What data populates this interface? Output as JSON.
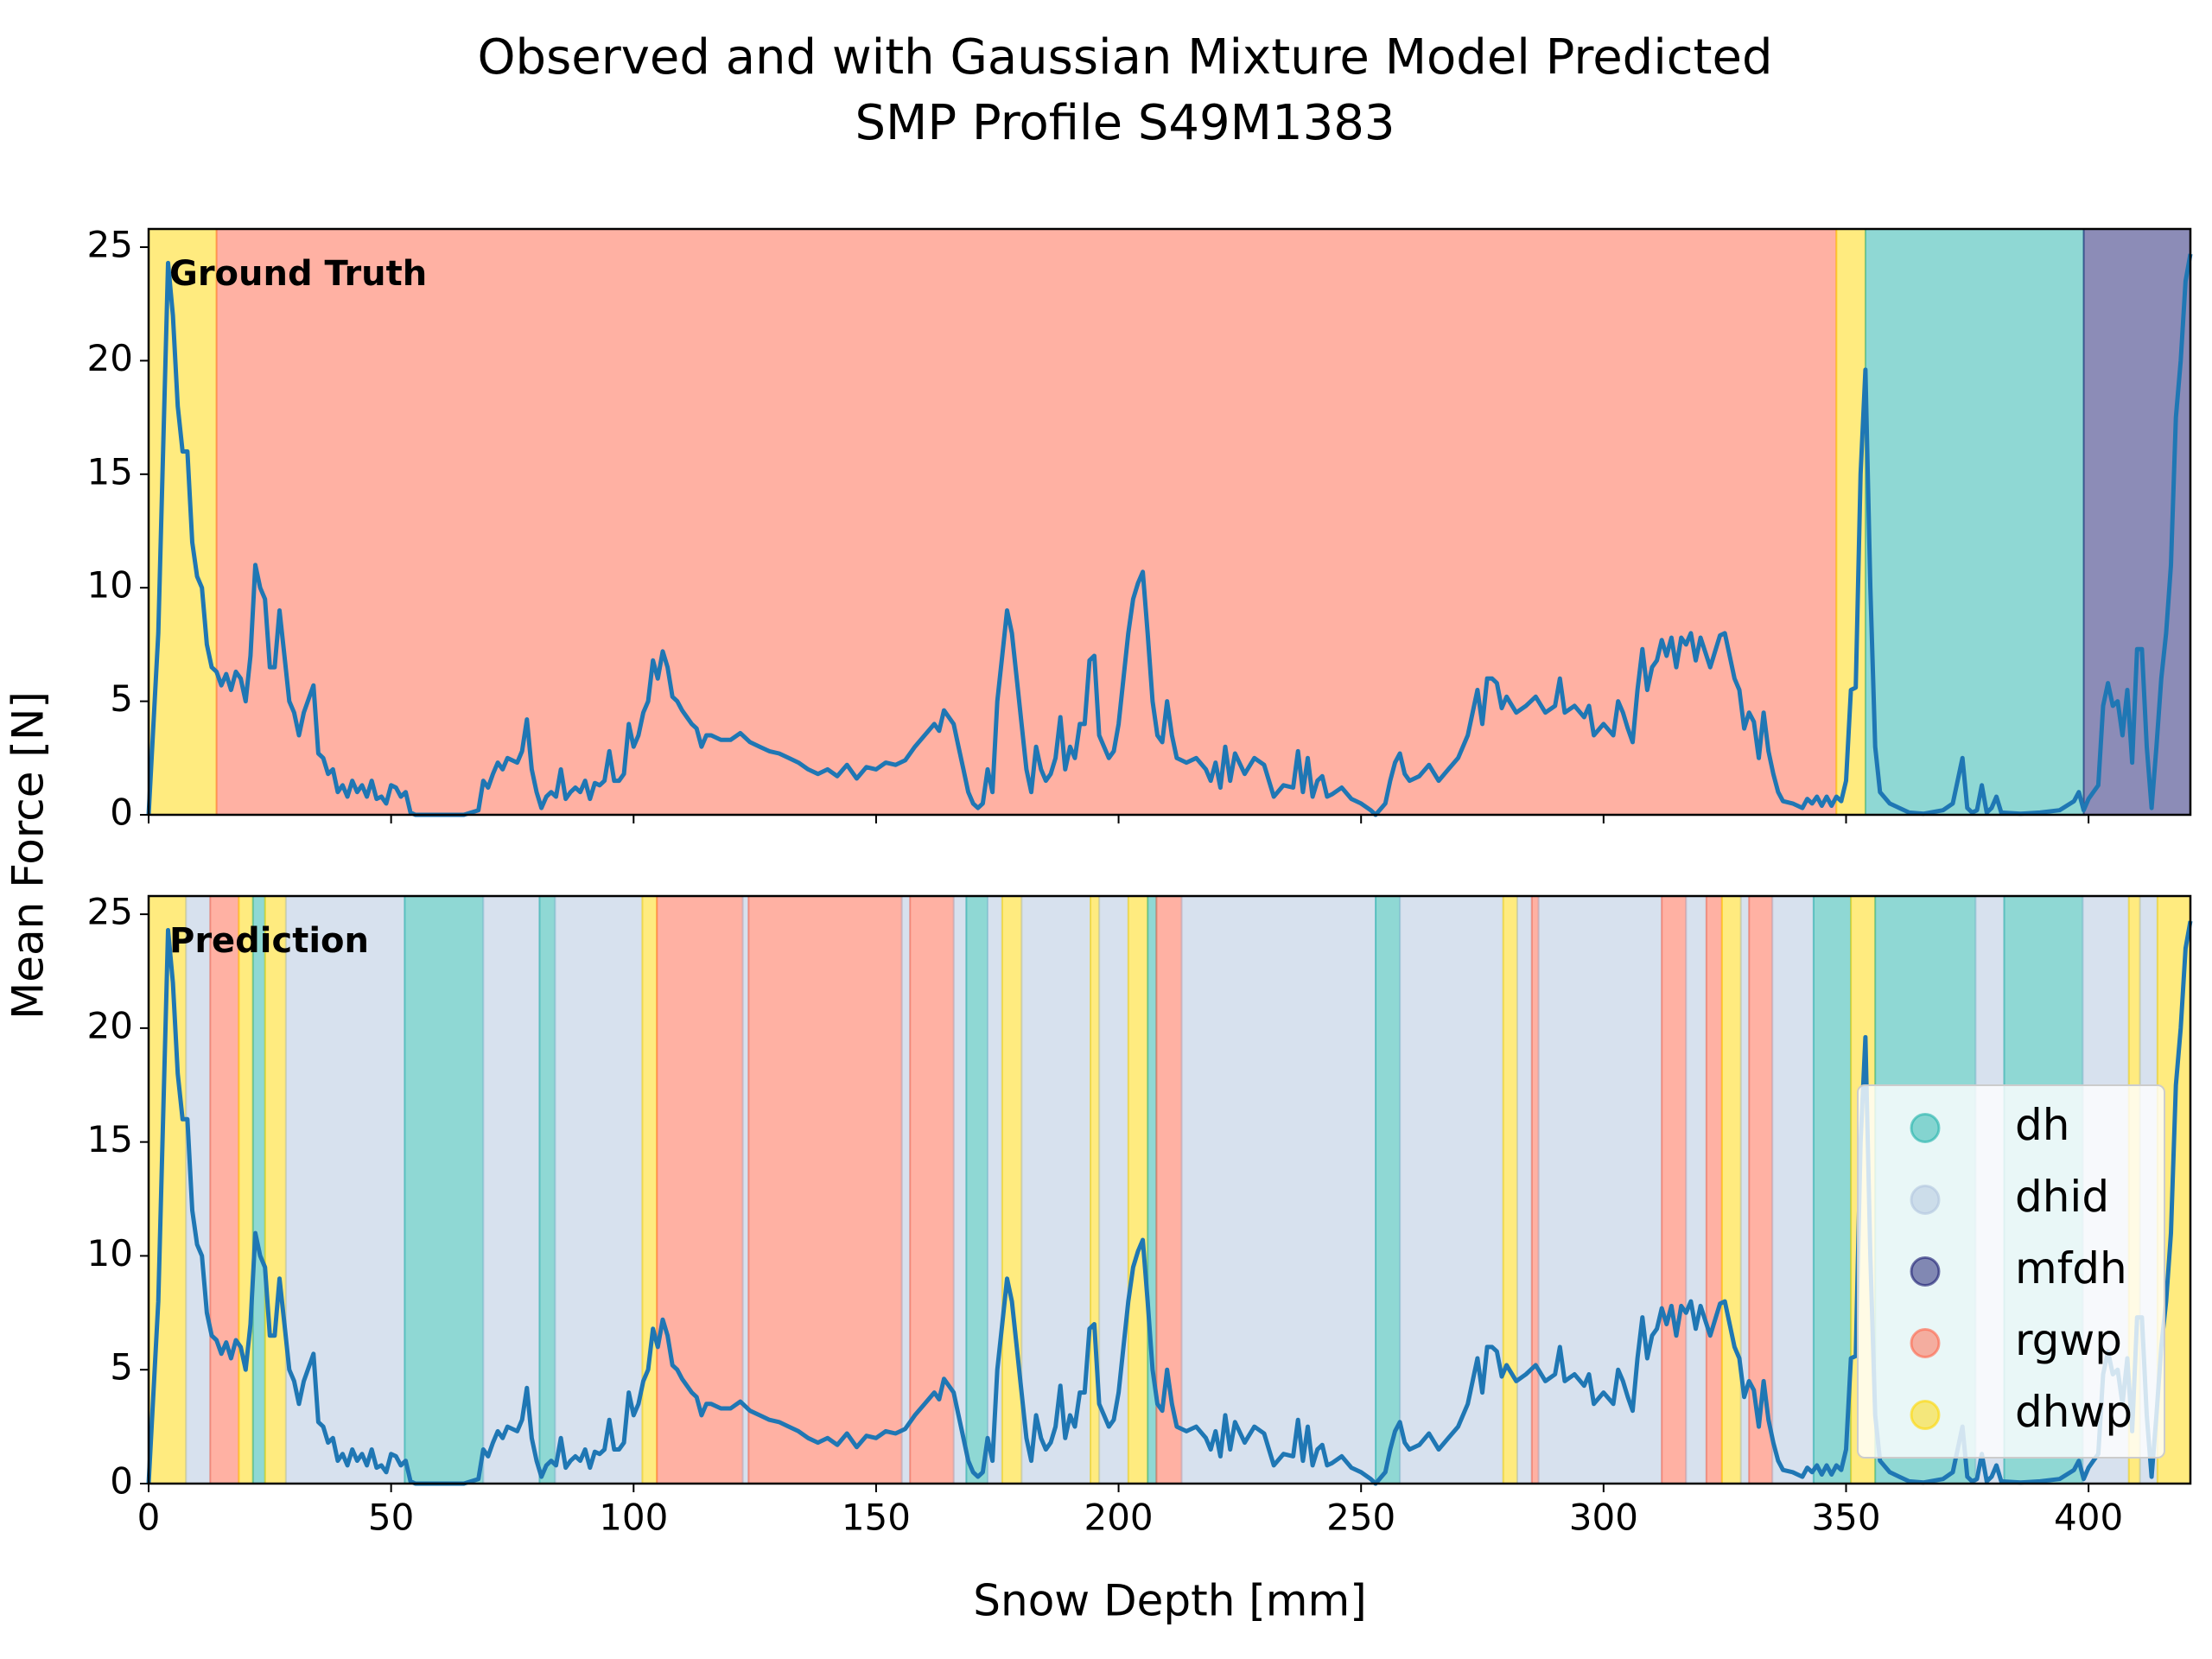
{
  "chart_data": {
    "type": "line",
    "title": [
      "Observed and with Gaussian Mixture Model Predicted",
      "SMP Profile S49M1383"
    ],
    "xlabel": "Snow Depth [mm]",
    "ylabel": "Mean Force [N]",
    "xlim": [
      0,
      421
    ],
    "xticks": [
      0,
      50,
      100,
      150,
      200,
      250,
      300,
      350,
      400
    ],
    "ylim": [
      0,
      25.8
    ],
    "yticks": [
      0,
      5,
      10,
      15,
      20,
      25
    ],
    "legend": "lower right",
    "classes": [
      {
        "name": "dh",
        "color": "#20b2aa"
      },
      {
        "name": "dhid",
        "color": "#b0c4de"
      },
      {
        "name": "mfdh",
        "color": "#191970"
      },
      {
        "name": "rgwp",
        "color": "#ff6347"
      },
      {
        "name": "dhwp",
        "color": "#ffd700"
      }
    ],
    "line": {
      "color": "#1f77b4",
      "x": [
        0,
        2,
        4,
        5,
        6,
        7,
        8,
        9,
        10,
        11,
        12,
        13,
        14,
        15,
        16,
        17,
        18,
        19,
        20,
        21,
        22,
        23,
        24,
        25,
        26,
        27,
        28,
        29,
        30,
        31,
        32,
        34,
        35,
        36,
        37,
        38,
        39,
        40,
        41,
        42,
        43,
        44,
        45,
        46,
        47,
        48,
        49,
        50,
        51,
        52,
        53,
        54,
        55,
        60,
        65,
        68,
        69,
        70,
        71,
        72,
        73,
        74,
        76,
        77,
        78,
        79,
        80,
        81,
        82,
        83,
        84,
        85,
        86,
        87,
        88,
        89,
        90,
        91,
        92,
        93,
        94,
        95,
        96,
        97,
        98,
        99,
        100,
        101,
        102,
        103,
        104,
        105,
        106,
        107,
        108,
        109,
        110,
        111,
        112,
        113,
        114,
        115,
        116,
        118,
        120,
        122,
        124,
        126,
        128,
        130,
        132,
        134,
        136,
        138,
        140,
        142,
        144,
        146,
        148,
        150,
        152,
        154,
        156,
        158,
        160,
        162,
        163,
        164,
        166,
        167,
        168,
        169,
        170,
        171,
        172,
        173,
        174,
        175,
        176,
        177,
        178,
        179,
        180,
        181,
        182,
        183,
        184,
        185,
        186,
        187,
        188,
        189,
        190,
        191,
        192,
        193,
        194,
        195,
        196,
        197,
        198,
        199,
        200,
        201,
        202,
        203,
        204,
        205,
        206,
        207,
        208,
        209,
        210,
        211,
        212,
        214,
        216,
        218,
        219,
        220,
        221,
        222,
        223,
        224,
        226,
        228,
        230,
        231,
        232,
        234,
        236,
        237,
        238,
        239,
        240,
        241,
        242,
        243,
        244,
        246,
        248,
        250,
        252,
        253,
        255,
        256,
        257,
        258,
        259,
        260,
        262,
        264,
        266,
        268,
        270,
        272,
        273,
        274,
        275,
        276,
        277,
        278,
        279,
        280,
        282,
        284,
        286,
        288,
        290,
        291,
        292,
        294,
        296,
        297,
        298,
        300,
        302,
        303,
        304,
        305,
        306,
        307,
        308,
        309,
        310,
        311,
        312,
        313,
        314,
        315,
        316,
        317,
        318,
        319,
        320,
        322,
        324,
        325,
        326,
        327,
        328,
        329,
        330,
        331,
        332,
        333,
        334,
        335,
        336,
        337,
        339,
        341,
        342,
        343,
        344,
        345,
        346,
        347,
        348,
        349,
        350,
        351,
        352,
        353,
        354,
        355,
        356,
        357,
        359,
        361,
        363,
        366,
        370,
        372,
        373,
        374,
        375,
        376,
        377,
        378,
        379,
        380,
        381,
        382,
        386,
        390,
        394,
        397,
        398,
        399,
        400,
        401,
        402,
        403,
        404,
        405,
        406,
        407,
        408,
        409,
        410,
        411,
        412,
        413,
        414,
        415,
        416,
        417,
        418,
        419,
        420,
        421
      ],
      "values": [
        0,
        8,
        24.3,
        22,
        18,
        16,
        16,
        12,
        10.5,
        10,
        7.5,
        6.5,
        6.3,
        5.7,
        6.2,
        5.5,
        6.3,
        6,
        5,
        7,
        11,
        10,
        9.5,
        6.5,
        6.5,
        9,
        7,
        5,
        4.5,
        3.5,
        4.5,
        5.7,
        2.7,
        2.5,
        1.8,
        2,
        1,
        1.3,
        0.8,
        1.5,
        1,
        1.3,
        0.8,
        1.5,
        0.7,
        0.8,
        0.5,
        1.3,
        1.2,
        0.8,
        1,
        0.1,
        0,
        0,
        0,
        0.2,
        1.5,
        1.2,
        1.8,
        2.3,
        2,
        2.5,
        2.3,
        2.8,
        4.2,
        2,
        1,
        0.3,
        0.8,
        1,
        0.8,
        2,
        0.7,
        1,
        1.2,
        1,
        1.5,
        0.7,
        1.4,
        1.3,
        1.5,
        2.8,
        1.5,
        1.5,
        1.8,
        4,
        3,
        3.5,
        4.5,
        5,
        6.8,
        6,
        7.2,
        6.5,
        5.2,
        5,
        4.6,
        4.3,
        4,
        3.8,
        3,
        3.5,
        3.5,
        3.3,
        3.3,
        3.6,
        3.2,
        3,
        2.8,
        2.7,
        2.5,
        2.3,
        2,
        1.8,
        2,
        1.7,
        2.2,
        1.6,
        2.1,
        2,
        2.3,
        2.2,
        2.4,
        3,
        3.5,
        4,
        3.7,
        4.6,
        4,
        3,
        2,
        1,
        0.5,
        0.3,
        0.5,
        2,
        1,
        5,
        7,
        9,
        8,
        6,
        4,
        2,
        1,
        3,
        2,
        1.5,
        1.8,
        2.5,
        4.3,
        2,
        3,
        2.5,
        4,
        4,
        6.8,
        7,
        3.5,
        3,
        2.5,
        2.8,
        4,
        6,
        8,
        9.5,
        10.2,
        10.7,
        8,
        5,
        3.5,
        3.2,
        5,
        3.5,
        2.5,
        2.3,
        2.5,
        2,
        1.5,
        2.3,
        1.2,
        3,
        1.5,
        2.7,
        1.8,
        2.5,
        2.2,
        1.5,
        0.8,
        1.3,
        1.2,
        2.8,
        1,
        2.5,
        0.8,
        1.5,
        1.7,
        0.8,
        0.9,
        1.2,
        0.7,
        0.5,
        0.2,
        0,
        0.5,
        1.5,
        2.3,
        2.7,
        1.8,
        1.5,
        1.7,
        2.2,
        1.5,
        2,
        2.5,
        3.5,
        4.5,
        5.5,
        4,
        6,
        6,
        5.8,
        4.7,
        5.2,
        4.5,
        4.8,
        5.2,
        4.5,
        4.8,
        6,
        4.5,
        4.8,
        4.3,
        4.8,
        3.5,
        4,
        3.5,
        5,
        4.5,
        3.8,
        3.2,
        5.5,
        7.3,
        5.5,
        6.5,
        6.8,
        7.7,
        7,
        7.8,
        6.5,
        7.8,
        7.5,
        8,
        6.8,
        7.8,
        6.5,
        7.9,
        8,
        7,
        6,
        5.5,
        3.8,
        4.5,
        4.1,
        2.5,
        4.5,
        2.8,
        1.8,
        1,
        0.6,
        0.5,
        0.3,
        0.7,
        0.5,
        0.8,
        0.4,
        0.8,
        0.4,
        0.8,
        0.6,
        1.5,
        5.5,
        5.6,
        15,
        19.6,
        10,
        3,
        1,
        0.5,
        0.3,
        0.1,
        0.05,
        0.2,
        0.5,
        1.5,
        2.5,
        0.3,
        0.1,
        0.2,
        1.3,
        0.1,
        0.3,
        0.8,
        0.1,
        0.05,
        0.1,
        0.2,
        0.6,
        1,
        0.2,
        0.7,
        1,
        1.3,
        4.8,
        5.8,
        4.8,
        5,
        3.5,
        5.5,
        2.3,
        7.3,
        7.3,
        3,
        0.3,
        3,
        6,
        8,
        11,
        17.5,
        20,
        23.5,
        24.7
      ]
    },
    "panels": [
      {
        "label": "Ground Truth",
        "spans": [
          {
            "start": 0,
            "end": 14,
            "class": "dhwp"
          },
          {
            "start": 14,
            "end": 348,
            "class": "rgwp"
          },
          {
            "start": 348,
            "end": 354,
            "class": "dhwp"
          },
          {
            "start": 354,
            "end": 399,
            "class": "dh"
          },
          {
            "start": 399,
            "end": 421,
            "class": "mfdh"
          }
        ]
      },
      {
        "label": "Prediction",
        "spans": [
          {
            "start": 0,
            "end": 7.7,
            "class": "dhwp"
          },
          {
            "start": 7.7,
            "end": 12.7,
            "class": "dhid"
          },
          {
            "start": 12.7,
            "end": 18.6,
            "class": "rgwp"
          },
          {
            "start": 18.6,
            "end": 21.5,
            "class": "dhwp"
          },
          {
            "start": 21.5,
            "end": 24,
            "class": "dh"
          },
          {
            "start": 24,
            "end": 28.3,
            "class": "dhwp"
          },
          {
            "start": 28.3,
            "end": 52.8,
            "class": "dhid"
          },
          {
            "start": 52.8,
            "end": 69,
            "class": "dh"
          },
          {
            "start": 69,
            "end": 80.6,
            "class": "dhid"
          },
          {
            "start": 80.6,
            "end": 83.8,
            "class": "dh"
          },
          {
            "start": 83.8,
            "end": 101.8,
            "class": "dhid"
          },
          {
            "start": 101.8,
            "end": 104.8,
            "class": "dhwp"
          },
          {
            "start": 104.8,
            "end": 122.5,
            "class": "rgwp"
          },
          {
            "start": 122.5,
            "end": 123.7,
            "class": "dhid"
          },
          {
            "start": 123.7,
            "end": 155.3,
            "class": "rgwp"
          },
          {
            "start": 155.3,
            "end": 157,
            "class": "dhid"
          },
          {
            "start": 157,
            "end": 166,
            "class": "rgwp"
          },
          {
            "start": 166,
            "end": 168.6,
            "class": "dhid"
          },
          {
            "start": 168.6,
            "end": 173,
            "class": "dh"
          },
          {
            "start": 173,
            "end": 176,
            "class": "dhid"
          },
          {
            "start": 176,
            "end": 180,
            "class": "dhwp"
          },
          {
            "start": 180,
            "end": 194.2,
            "class": "dhid"
          },
          {
            "start": 194.2,
            "end": 196,
            "class": "dhwp"
          },
          {
            "start": 196,
            "end": 202,
            "class": "dhid"
          },
          {
            "start": 202,
            "end": 206,
            "class": "dhwp"
          },
          {
            "start": 206,
            "end": 207.8,
            "class": "dh"
          },
          {
            "start": 207.8,
            "end": 213,
            "class": "rgwp"
          },
          {
            "start": 213,
            "end": 253,
            "class": "dhid"
          },
          {
            "start": 253,
            "end": 258,
            "class": "dh"
          },
          {
            "start": 258,
            "end": 279.3,
            "class": "dhid"
          },
          {
            "start": 279.3,
            "end": 282.2,
            "class": "dhwp"
          },
          {
            "start": 282.2,
            "end": 285.2,
            "class": "dhid"
          },
          {
            "start": 285.2,
            "end": 286.6,
            "class": "rgwp"
          },
          {
            "start": 286.6,
            "end": 312,
            "class": "dhid"
          },
          {
            "start": 312,
            "end": 317,
            "class": "rgwp"
          },
          {
            "start": 317,
            "end": 321.2,
            "class": "dhid"
          },
          {
            "start": 321.2,
            "end": 324.4,
            "class": "rgwp"
          },
          {
            "start": 324.4,
            "end": 328.3,
            "class": "dhwp"
          },
          {
            "start": 328.3,
            "end": 330,
            "class": "dhid"
          },
          {
            "start": 330,
            "end": 334.8,
            "class": "rgwp"
          },
          {
            "start": 334.8,
            "end": 343.3,
            "class": "dhid"
          },
          {
            "start": 343.3,
            "end": 351,
            "class": "dh"
          },
          {
            "start": 351,
            "end": 356,
            "class": "dhwp"
          },
          {
            "start": 356,
            "end": 376.7,
            "class": "dh"
          },
          {
            "start": 376.7,
            "end": 382.6,
            "class": "dhid"
          },
          {
            "start": 382.6,
            "end": 398.8,
            "class": "dh"
          },
          {
            "start": 398.8,
            "end": 408.3,
            "class": "dhid"
          },
          {
            "start": 408.3,
            "end": 410.6,
            "class": "dhwp"
          },
          {
            "start": 410.6,
            "end": 414.2,
            "class": "dhid"
          },
          {
            "start": 414.2,
            "end": 421,
            "class": "dhwp"
          }
        ]
      }
    ]
  }
}
